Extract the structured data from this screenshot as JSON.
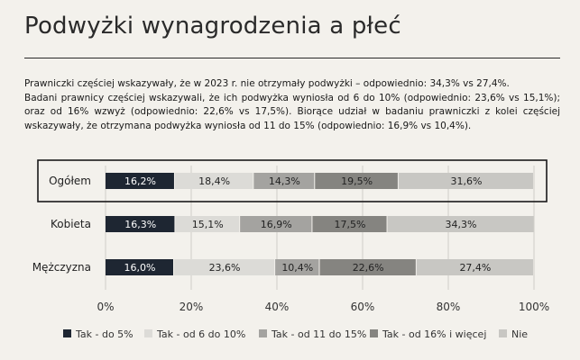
{
  "page": {
    "title": "Podwyżki wynagrodzenia a płeć",
    "paragraphs": [
      "Prawniczki częściej wskazywały, że w 2023 r. nie otrzymały podwyżki – odpowiednio: 34,3% vs 27,4%.",
      "Badani prawnicy częściej wskazywali, że ich podwyżka wyniosła od 6 do 10% (odpowiednio: 23,6% vs 15,1%); oraz od 16% wzwyż (odpowiednio: 22,6% vs 17,5%). Biorące udział w badaniu prawniczki z kolei częściej wskazywały, że otrzymana podwyżka wyniosła od 11 do 15% (odpowiednio: 16,9% vs 10,4%)."
    ]
  },
  "chart_data": {
    "type": "bar",
    "orientation": "horizontal",
    "stacked": "100%",
    "categories": [
      "Ogółem",
      "Kobieta",
      "Mężczyzna"
    ],
    "highlighted_category": "Ogółem",
    "series": [
      {
        "name": "Tak - do 5%",
        "color": "#1e2632",
        "text_color": "#ffffff",
        "values": [
          16.2,
          16.3,
          16.0
        ],
        "labels": [
          "16,2%",
          "16,3%",
          "16,0%"
        ]
      },
      {
        "name": "Tak - od 6 do 10%",
        "color": "#dcdbd7",
        "text_color": "#222222",
        "values": [
          18.4,
          15.1,
          23.6
        ],
        "labels": [
          "18,4%",
          "15,1%",
          "23,6%"
        ]
      },
      {
        "name": "Tak - od 11 do 15%",
        "color": "#a4a3a0",
        "text_color": "#222222",
        "values": [
          14.3,
          16.9,
          10.4
        ],
        "labels": [
          "14,3%",
          "16,9%",
          "10,4%"
        ]
      },
      {
        "name": "Tak - od 16% i więcej",
        "color": "#858480",
        "text_color": "#222222",
        "values": [
          19.5,
          17.5,
          22.6
        ],
        "labels": [
          "19,5%",
          "17,5%",
          "22,6%"
        ]
      },
      {
        "name": "Nie",
        "color": "#c8c7c3",
        "text_color": "#222222",
        "values": [
          31.6,
          34.3,
          27.4
        ],
        "labels": [
          "31,6%",
          "34,3%",
          "27,4%"
        ]
      }
    ],
    "xlim": [
      0,
      100
    ],
    "x_ticks": [
      "0%",
      "20%",
      "40%",
      "60%",
      "80%",
      "100%"
    ],
    "grid": true,
    "legend": "bottom"
  }
}
